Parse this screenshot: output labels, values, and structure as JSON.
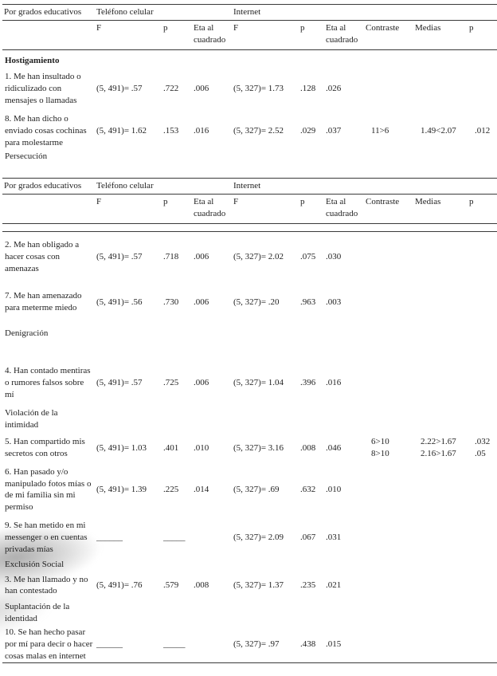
{
  "colors": {
    "background": "#ffffff",
    "text": "#1f1f1f",
    "rule": "#3a3a3a"
  },
  "header": {
    "row_label": "Por grados educativos",
    "group1": "Teléfono celular",
    "group2": "Internet",
    "subheaders": [
      "F",
      "p",
      "Eta al cuadrado",
      "F",
      "p",
      "Eta al cuadrado",
      "Contraste",
      "Medias",
      "p"
    ]
  },
  "table_part1": {
    "rows": [
      {
        "type": "section",
        "bold": true,
        "label": "Hostigamiento"
      },
      {
        "type": "data",
        "label": "1. Me han insultado o ridiculizado con mensajes o llamadas",
        "cells": [
          "(5, 491)= .57",
          ".722",
          ".006",
          "(5, 327)= 1.73",
          ".128",
          ".026",
          "",
          "",
          ""
        ]
      },
      {
        "type": "data",
        "label": "8. Me han dicho o enviado cosas cochinas para molestarme",
        "cells": [
          "(5, 491)= 1.62",
          ".153",
          ".016",
          "(5, 327)= 2.52",
          ".029",
          ".037",
          "11>6",
          "1.49<2.07",
          ".012"
        ]
      },
      {
        "type": "section",
        "label": "Persecución"
      }
    ]
  },
  "table_part2": {
    "rows": [
      {
        "type": "data",
        "label": "2. Me han obligado a hacer cosas con amenazas",
        "cells": [
          "(5, 491)= .57",
          ".718",
          ".006",
          "(5, 327)= 2.02",
          ".075",
          ".030",
          "",
          "",
          ""
        ]
      },
      {
        "type": "data",
        "label": "7. Me han amenazado para meterme miedo",
        "cells": [
          "(5, 491)= .56",
          ".730",
          ".006",
          "(5, 327)= .20",
          ".963",
          ".003",
          "",
          "",
          ""
        ]
      },
      {
        "type": "section",
        "label": "Denigración"
      },
      {
        "type": "data",
        "label": "4. Han contado mentiras o rumores falsos sobre mí",
        "cells": [
          "(5, 491)= .57",
          ".725",
          ".006",
          "(5, 327)= 1.04",
          ".396",
          ".016",
          "",
          "",
          ""
        ]
      },
      {
        "type": "section",
        "label": "Violación de la intimidad"
      },
      {
        "type": "data",
        "label": "5. Han compartido mis secretos con otros",
        "cells": [
          "(5, 491)= 1.03",
          ".401",
          ".010",
          "(5, 327)= 3.16",
          ".008",
          ".046",
          "6>10\n8>10",
          "2.22>1.67\n2.16>1.67",
          ".032\n.05"
        ]
      },
      {
        "type": "data",
        "label": "6. Han pasado y/o manipulado fotos mías o de mi familia sin mi permiso",
        "cells": [
          "(5, 491)= 1.39",
          ".225",
          ".014",
          "(5, 327)= .69",
          ".632",
          ".010",
          "",
          "",
          ""
        ]
      },
      {
        "type": "data",
        "label": "9. Se han metido en mi messenger o en cuentas privadas mías",
        "cells": [
          "______",
          "_____",
          "",
          "(5, 327)= 2.09",
          ".067",
          ".031",
          "",
          "",
          ""
        ]
      },
      {
        "type": "section",
        "label": "Exclusión Social"
      },
      {
        "type": "data",
        "label": "3. Me han llamado y no han contestado",
        "cells": [
          "(5, 491)= .76",
          ".579",
          ".008",
          "(5, 327)= 1.37",
          ".235",
          ".021",
          "",
          "",
          ""
        ]
      },
      {
        "type": "section",
        "label": "Suplantación de la identidad"
      },
      {
        "type": "data",
        "label": "10. Se han hecho pasar por mí para decir o hacer cosas malas en internet",
        "cells": [
          "______",
          "_____",
          "",
          "(5, 327)= .97",
          ".438",
          ".015",
          "",
          "",
          ""
        ]
      }
    ]
  }
}
